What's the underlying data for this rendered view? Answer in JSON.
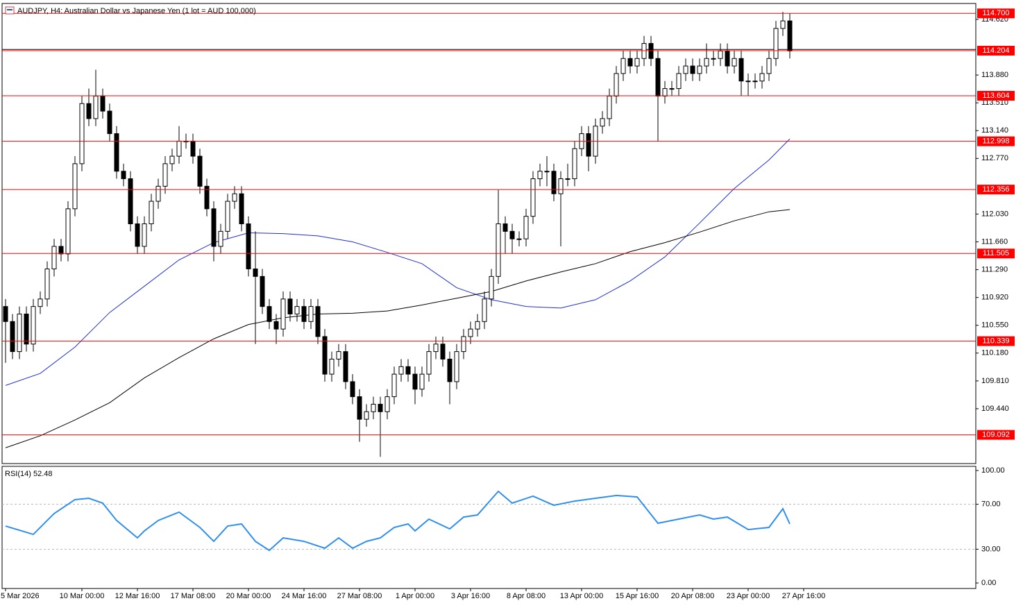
{
  "chart_data": [
    {
      "type": "candlestick",
      "title": "AUDJPY, H4:  Australian Dollar vs Japanese Yen (1 lot = AUD 100,000)",
      "xlim": [
        -0.5,
        139.8
      ],
      "ylim": [
        108.71,
        114.832
      ],
      "yticks": [
        {
          "value": 114.62,
          "label": "114.620"
        },
        {
          "value": 113.88,
          "label": "113.880"
        },
        {
          "value": 113.51,
          "label": "113.510"
        },
        {
          "value": 113.14,
          "label": "113.140"
        },
        {
          "value": 112.77,
          "label": "112.770"
        },
        {
          "value": 112.03,
          "label": "112.030"
        },
        {
          "value": 111.66,
          "label": "111.660"
        },
        {
          "value": 111.29,
          "label": "111.290"
        },
        {
          "value": 110.92,
          "label": "110.920"
        },
        {
          "value": 110.55,
          "label": "110.550"
        },
        {
          "value": 110.18,
          "label": "110.180"
        },
        {
          "value": 109.81,
          "label": "109.810"
        },
        {
          "value": 109.44,
          "label": "109.440"
        }
      ],
      "xticks": [
        {
          "value": 0,
          "label": "5 Mar 2026"
        },
        {
          "value": 11,
          "label": "10 Mar 00:00"
        },
        {
          "value": 19,
          "label": "12 Mar 16:00"
        },
        {
          "value": 27,
          "label": "17 Mar 08:00"
        },
        {
          "value": 35,
          "label": "20 Mar 00:00"
        },
        {
          "value": 43,
          "label": "24 Mar 16:00"
        },
        {
          "value": 51,
          "label": "27 Mar 08:00"
        },
        {
          "value": 59,
          "label": "1 Apr 00:00"
        },
        {
          "value": 67,
          "label": "3 Apr 16:00"
        },
        {
          "value": 75,
          "label": "8 Apr 08:00"
        },
        {
          "value": 83,
          "label": "13 Apr 00:00"
        },
        {
          "value": 91,
          "label": "15 Apr 16:00"
        },
        {
          "value": 99,
          "label": "20 Apr 08:00"
        },
        {
          "value": 107,
          "label": "23 Apr 00:00"
        },
        {
          "value": 115,
          "label": "27 Apr 16:00"
        }
      ],
      "up_color": "#ffffff",
      "down_color": "#000000",
      "candles": [
        [
          110.8,
          110.9,
          110.05,
          110.6
        ],
        [
          110.6,
          110.7,
          110.1,
          110.2
        ],
        [
          110.2,
          110.8,
          110.1,
          110.7
        ],
        [
          110.7,
          110.8,
          110.2,
          110.3
        ],
        [
          110.3,
          110.9,
          110.2,
          110.8
        ],
        [
          110.8,
          111.0,
          110.7,
          110.9
        ],
        [
          110.9,
          111.4,
          110.8,
          111.3
        ],
        [
          111.3,
          111.7,
          111.2,
          111.6
        ],
        [
          111.6,
          111.7,
          111.4,
          111.5
        ],
        [
          111.5,
          112.2,
          111.4,
          112.1
        ],
        [
          112.1,
          112.8,
          112.0,
          112.7
        ],
        [
          112.7,
          113.6,
          112.6,
          113.5
        ],
        [
          113.5,
          113.7,
          113.2,
          113.3
        ],
        [
          113.3,
          113.95,
          113.2,
          113.6
        ],
        [
          113.6,
          113.7,
          113.3,
          113.4
        ],
        [
          113.4,
          113.5,
          113.0,
          113.1
        ],
        [
          113.1,
          113.2,
          112.5,
          112.6
        ],
        [
          112.6,
          112.7,
          112.4,
          112.5
        ],
        [
          112.5,
          112.6,
          111.8,
          111.9
        ],
        [
          111.9,
          112.0,
          111.5,
          111.6
        ],
        [
          111.6,
          112.0,
          111.5,
          111.9
        ],
        [
          111.9,
          112.3,
          111.8,
          112.2
        ],
        [
          112.2,
          112.5,
          112.1,
          112.4
        ],
        [
          112.4,
          112.8,
          112.3,
          112.7
        ],
        [
          112.7,
          112.9,
          112.6,
          112.8
        ],
        [
          112.8,
          113.2,
          112.7,
          113.0
        ],
        [
          113.0,
          113.1,
          112.9,
          113.0
        ],
        [
          113.0,
          113.1,
          112.7,
          112.8
        ],
        [
          112.8,
          112.9,
          112.3,
          112.4
        ],
        [
          112.4,
          112.5,
          112.0,
          112.1
        ],
        [
          112.1,
          112.2,
          111.4,
          111.6
        ],
        [
          111.6,
          111.9,
          111.5,
          111.8
        ],
        [
          111.8,
          112.3,
          111.7,
          112.2
        ],
        [
          112.2,
          112.4,
          112.1,
          112.3
        ],
        [
          112.3,
          112.4,
          111.8,
          111.9
        ],
        [
          111.9,
          112.0,
          111.2,
          111.3
        ],
        [
          111.3,
          111.8,
          110.3,
          111.2
        ],
        [
          111.2,
          111.3,
          110.7,
          110.8
        ],
        [
          110.8,
          110.9,
          110.5,
          110.6
        ],
        [
          110.6,
          110.7,
          110.3,
          110.5
        ],
        [
          110.5,
          111.0,
          110.4,
          110.9
        ],
        [
          110.9,
          111.0,
          110.6,
          110.7
        ],
        [
          110.7,
          110.9,
          110.6,
          110.8
        ],
        [
          110.8,
          110.9,
          110.5,
          110.6
        ],
        [
          110.6,
          110.9,
          110.5,
          110.8
        ],
        [
          110.8,
          110.9,
          110.3,
          110.4
        ],
        [
          110.4,
          110.5,
          109.8,
          109.9
        ],
        [
          109.9,
          110.2,
          109.8,
          110.1
        ],
        [
          110.1,
          110.3,
          110.0,
          110.2
        ],
        [
          110.2,
          110.3,
          109.7,
          109.8
        ],
        [
          109.8,
          109.9,
          109.5,
          109.6
        ],
        [
          109.6,
          109.7,
          109.0,
          109.3
        ],
        [
          109.3,
          109.5,
          109.2,
          109.4
        ],
        [
          109.4,
          109.6,
          109.3,
          109.5
        ],
        [
          109.5,
          109.6,
          108.8,
          109.4
        ],
        [
          109.4,
          109.7,
          109.3,
          109.6
        ],
        [
          109.6,
          110.0,
          109.5,
          109.9
        ],
        [
          109.9,
          110.1,
          109.8,
          110.0
        ],
        [
          110.0,
          110.1,
          109.8,
          109.9
        ],
        [
          109.9,
          110.0,
          109.5,
          109.7
        ],
        [
          109.7,
          110.0,
          109.6,
          109.9
        ],
        [
          109.9,
          110.3,
          109.8,
          110.2
        ],
        [
          110.2,
          110.4,
          110.1,
          110.3
        ],
        [
          110.3,
          110.4,
          110.0,
          110.1
        ],
        [
          110.1,
          110.2,
          109.5,
          109.8
        ],
        [
          109.8,
          110.3,
          109.7,
          110.2
        ],
        [
          110.2,
          110.5,
          110.1,
          110.4
        ],
        [
          110.4,
          110.6,
          110.3,
          110.5
        ],
        [
          110.5,
          110.7,
          110.4,
          110.6
        ],
        [
          110.6,
          111.0,
          110.5,
          110.9
        ],
        [
          110.9,
          111.3,
          110.8,
          111.2
        ],
        [
          111.2,
          112.35,
          111.1,
          111.9
        ],
        [
          111.9,
          112.0,
          111.5,
          111.8
        ],
        [
          111.8,
          111.9,
          111.5,
          111.7
        ],
        [
          111.7,
          111.8,
          111.6,
          111.7
        ],
        [
          111.7,
          112.1,
          111.6,
          112.0
        ],
        [
          112.0,
          112.6,
          111.9,
          112.5
        ],
        [
          112.5,
          112.7,
          112.4,
          112.6
        ],
        [
          112.6,
          112.8,
          112.4,
          112.6
        ],
        [
          112.6,
          112.7,
          112.2,
          112.3
        ],
        [
          112.3,
          112.6,
          111.6,
          112.5
        ],
        [
          112.5,
          112.7,
          112.4,
          112.5
        ],
        [
          112.5,
          113.0,
          112.4,
          112.9
        ],
        [
          112.9,
          113.2,
          112.8,
          113.1
        ],
        [
          113.1,
          113.2,
          112.6,
          112.8
        ],
        [
          112.8,
          113.3,
          112.7,
          113.2
        ],
        [
          113.2,
          113.4,
          113.1,
          113.3
        ],
        [
          113.3,
          113.7,
          113.2,
          113.6
        ],
        [
          113.6,
          114.0,
          113.5,
          113.9
        ],
        [
          113.9,
          114.2,
          113.8,
          114.1
        ],
        [
          114.1,
          114.2,
          113.9,
          114.0
        ],
        [
          114.0,
          114.2,
          113.9,
          114.1
        ],
        [
          114.1,
          114.4,
          114.0,
          114.3
        ],
        [
          114.3,
          114.4,
          114.0,
          114.1
        ],
        [
          114.1,
          114.2,
          113.0,
          113.6
        ],
        [
          113.6,
          113.8,
          113.5,
          113.7
        ],
        [
          113.7,
          113.8,
          113.6,
          113.7
        ],
        [
          113.7,
          114.0,
          113.6,
          113.9
        ],
        [
          113.9,
          114.1,
          113.8,
          114.0
        ],
        [
          114.0,
          114.1,
          113.8,
          113.9
        ],
        [
          113.9,
          114.1,
          113.8,
          114.0
        ],
        [
          114.0,
          114.3,
          113.9,
          114.1
        ],
        [
          114.1,
          114.2,
          114.0,
          114.1
        ],
        [
          114.1,
          114.3,
          114.0,
          114.2
        ],
        [
          114.2,
          114.3,
          113.9,
          114.0
        ],
        [
          114.0,
          114.2,
          113.9,
          114.1
        ],
        [
          114.1,
          114.2,
          113.6,
          113.8
        ],
        [
          113.8,
          113.9,
          113.6,
          113.8
        ],
        [
          113.8,
          113.9,
          113.7,
          113.8
        ],
        [
          113.8,
          114.0,
          113.7,
          113.9
        ],
        [
          113.9,
          114.2,
          113.8,
          114.1
        ],
        [
          114.1,
          114.6,
          114.0,
          114.5
        ],
        [
          114.5,
          114.72,
          114.4,
          114.6
        ],
        [
          114.6,
          114.7,
          114.1,
          114.2
        ]
      ],
      "level_color": "#ff0000",
      "levels": [
        {
          "value": 114.7,
          "label": "114.700"
        },
        {
          "value": 114.204,
          "label": "114.204"
        },
        {
          "value": 113.604,
          "label": "113.604"
        },
        {
          "value": 112.998,
          "label": "112.998"
        },
        {
          "value": 112.356,
          "label": "112.356"
        },
        {
          "value": 111.505,
          "label": "111.505"
        },
        {
          "value": 110.339,
          "label": "110.339"
        },
        {
          "value": 109.092,
          "label": "109.092"
        }
      ],
      "bid_line": 114.22,
      "ma_x": [
        0,
        5,
        10,
        15,
        20,
        25,
        30,
        35,
        40,
        45,
        50,
        55,
        60,
        65,
        70,
        75,
        80,
        85,
        90,
        95,
        100,
        105,
        110,
        113
      ],
      "series": [
        {
          "color": "#1f2fd6",
          "values": [
            109.75,
            109.91,
            110.26,
            110.72,
            111.07,
            111.42,
            111.65,
            111.78,
            111.77,
            111.74,
            111.66,
            111.52,
            111.37,
            111.05,
            110.89,
            110.8,
            110.78,
            110.89,
            111.14,
            111.46,
            111.91,
            112.37,
            112.75,
            113.03
          ]
        },
        {
          "color": "#000000",
          "values": [
            108.92,
            109.08,
            109.29,
            109.52,
            109.85,
            110.12,
            110.37,
            110.56,
            110.65,
            110.7,
            110.71,
            110.74,
            110.82,
            110.91,
            111.0,
            111.14,
            111.26,
            111.37,
            111.53,
            111.65,
            111.79,
            111.94,
            112.06,
            112.09
          ]
        }
      ]
    },
    {
      "type": "line",
      "title": "RSI(14) 52.48",
      "color": "#2f8ff0",
      "ylim": [
        -4.9,
        103.7
      ],
      "yticks": [
        {
          "value": 100,
          "label": "100.00"
        },
        {
          "value": 70,
          "label": "70.00"
        },
        {
          "value": 30,
          "label": "30.00"
        },
        {
          "value": 0,
          "label": "0.00"
        }
      ],
      "grid_levels": [
        70,
        30
      ],
      "x": [
        0,
        4,
        6,
        7,
        10,
        12,
        14,
        16,
        19,
        20,
        22,
        25,
        28,
        30,
        32,
        34,
        36,
        38,
        40,
        43,
        46,
        48,
        50,
        52,
        54,
        56,
        58,
        59,
        61,
        64,
        66,
        68,
        71,
        73,
        76,
        79,
        82,
        85,
        88,
        91,
        94,
        97,
        100,
        102,
        104,
        107,
        110,
        112,
        113
      ],
      "values": [
        50.6,
        43.2,
        55.6,
        61.7,
        74.1,
        75.3,
        71.0,
        55.6,
        40.1,
        46.3,
        55.6,
        63.0,
        49.4,
        37.0,
        50.6,
        52.5,
        37.0,
        29.0,
        40.1,
        37.0,
        30.9,
        40.1,
        30.9,
        37.0,
        40.1,
        49.4,
        52.5,
        46.3,
        56.8,
        48.1,
        58.6,
        60.5,
        81.5,
        71.0,
        77.2,
        69.1,
        72.8,
        75.3,
        77.8,
        76.5,
        53.1,
        56.8,
        60.5,
        56.8,
        58.6,
        47.5,
        49.4,
        66.0,
        52.48
      ]
    }
  ]
}
